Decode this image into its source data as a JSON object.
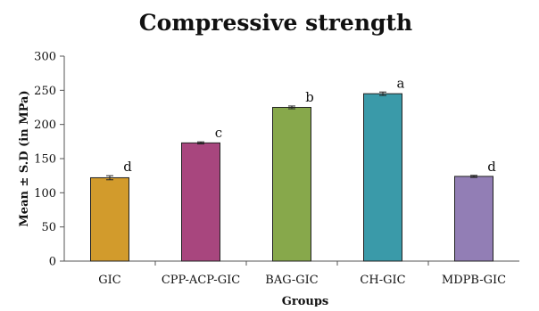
{
  "chart_data": {
    "type": "bar",
    "title": "Compressive strength",
    "xlabel": "Groups",
    "ylabel": "Mean ± S.D (in MPa)",
    "ylim": [
      0,
      300
    ],
    "yticks": [
      0,
      50,
      100,
      150,
      200,
      250,
      300
    ],
    "grid": false,
    "legend": "none",
    "categories": [
      "GIC",
      "CPP-ACP-GIC",
      "BAG-GIC",
      "CH-GIC",
      "MDPB-GIC"
    ],
    "values": [
      122,
      173,
      225,
      245,
      124
    ],
    "errors": [
      3,
      1.5,
      2,
      2.5,
      1.5
    ],
    "significance_labels": [
      "d",
      "c",
      "b",
      "a",
      "d"
    ],
    "colors": [
      "#d29b2c",
      "#a8467e",
      "#87a84b",
      "#3a9aa9",
      "#927eb5"
    ]
  }
}
